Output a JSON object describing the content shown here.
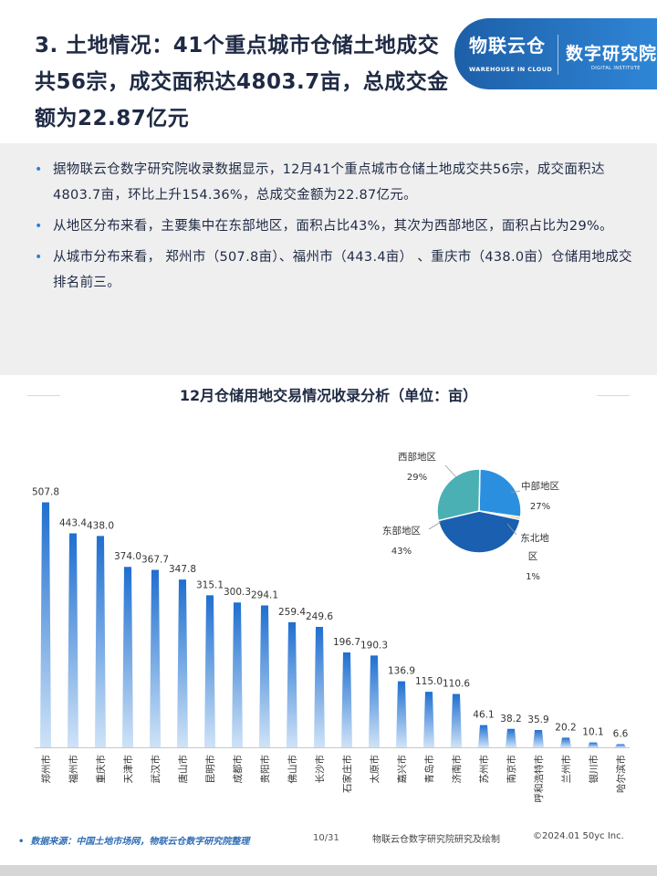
{
  "header": {
    "title": "3. 土地情况：41个重点城市仓储土地成交共56宗，成交面积达4803.7亩，总成交金额为22.87亿元",
    "brand_primary": "物联云仓",
    "brand_primary_sub": "WAREHOUSE IN CLOUD",
    "brand_secondary": "数字研究院",
    "brand_secondary_sub": "DIGITAL INSTITUTE",
    "brand_color": "#2f7fd0"
  },
  "summary": {
    "bullets": [
      "据物联云仓数字研究院收录数据显示，12月41个重点城市仓储土地成交共56宗，成交面积达4803.7亩，环比上升154.36%，总成交金额为22.87亿元。",
      "从地区分布来看，主要集中在东部地区，面积占比43%，其次为西部地区，面积占比为29%。",
      "从城市分布来看， 郑州市（507.8亩）、福州市（443.4亩） 、重庆市（438.0亩）仓储用地成交排名前三。"
    ]
  },
  "chart_title": "12月仓储用地交易情况收录分析（单位：亩）",
  "chart_data": [
    {
      "type": "bar",
      "title": "12月仓储用地交易情况收录分析（单位：亩）",
      "categories": [
        "郑州市",
        "福州市",
        "重庆市",
        "天津市",
        "武汉市",
        "唐山市",
        "昆明市",
        "成都市",
        "贵阳市",
        "佛山市",
        "长沙市",
        "石家庄市",
        "太原市",
        "嘉兴市",
        "青岛市",
        "济南市",
        "苏州市",
        "南京市",
        "呼和浩特市",
        "兰州市",
        "银川市",
        "哈尔滨市"
      ],
      "values": [
        507.8,
        443.4,
        438.0,
        374.0,
        367.7,
        347.8,
        315.1,
        300.3,
        294.1,
        259.4,
        249.6,
        196.7,
        190.3,
        136.9,
        115.0,
        110.6,
        46.1,
        38.2,
        35.9,
        20.2,
        10.1,
        6.6
      ],
      "value_labels": [
        "507.8",
        "443.4",
        "438.0",
        "374.0",
        "367.7",
        "347.8",
        "315.1",
        "300.3",
        "294.1",
        "259.4",
        "249.6",
        "196.7",
        "190.3",
        "136.9",
        "115.0",
        "110.6",
        "46.1",
        "38.2",
        "35.9",
        "20.2",
        "10.1",
        "6.6"
      ],
      "bar_color": "#1f6fd0",
      "xlabel": "",
      "ylabel": "",
      "ylim": [
        0,
        520
      ]
    },
    {
      "type": "pie",
      "slices": [
        {
          "name": "中部地区",
          "value": 27,
          "label": "27%",
          "color": "#2b8fe0"
        },
        {
          "name": "东北地区",
          "value": 1,
          "label": "1%",
          "color": "#f2c14e"
        },
        {
          "name": "东部地区",
          "value": 43,
          "label": "43%",
          "color": "#1a5fb0"
        },
        {
          "name": "西部地区",
          "value": 29,
          "label": "29%",
          "color": "#4ab0b4"
        }
      ]
    }
  ],
  "footer": {
    "source": "数据来源：中国土地市场网，物联云仓数字研究院整理",
    "page": "10/31",
    "credit": "物联云仓数字研究院研究及绘制",
    "copyright": "©2024.01 50yc Inc."
  }
}
